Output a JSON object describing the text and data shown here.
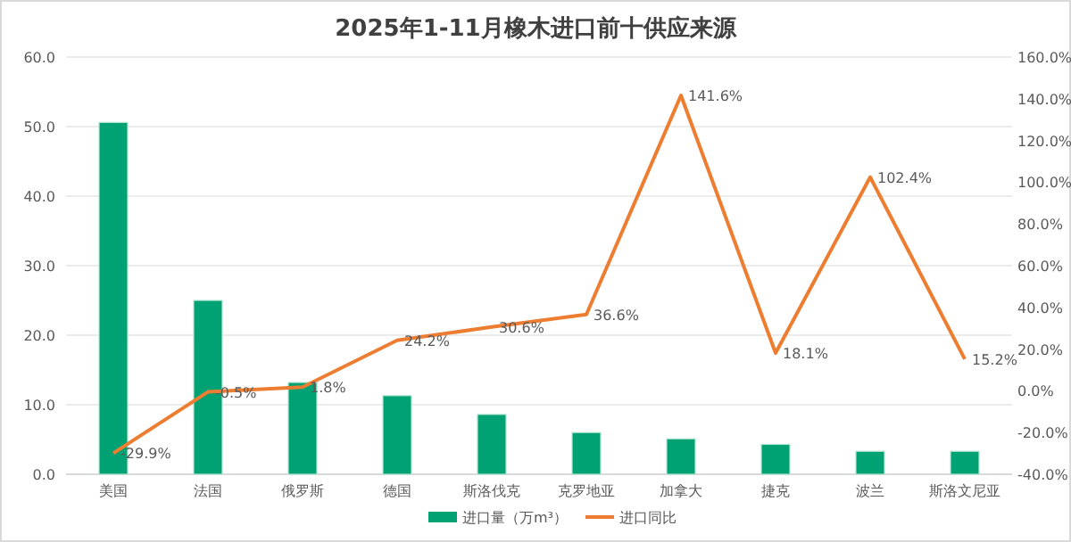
{
  "chart_data": {
    "type": "bar",
    "title": "2025年1-11月橡木进口前十供应来源",
    "categories": [
      "美国",
      "法国",
      "俄罗斯",
      "德国",
      "斯洛伐克",
      "克罗地亚",
      "加拿大",
      "捷克",
      "波兰",
      "斯洛文尼亚"
    ],
    "series": [
      {
        "name": "进口量（万m³）",
        "color": "#00a274",
        "values": [
          50.6,
          25.0,
          13.2,
          11.3,
          8.6,
          6.0,
          5.1,
          4.3,
          3.3,
          3.3
        ]
      },
      {
        "name": "进口同比",
        "type": "line",
        "axis": "y2",
        "color": "#ed7d31",
        "values": [
          -29.9,
          -0.5,
          1.8,
          24.2,
          30.6,
          36.6,
          141.6,
          18.1,
          102.4,
          15.2
        ],
        "value_labels": [
          "-29.9%",
          "-0.5%",
          "1.8%",
          "24.2%",
          "30.6%",
          "36.6%",
          "141.6%",
          "18.1%",
          "102.4%",
          "15.2%"
        ]
      }
    ],
    "ylim": [
      0,
      60
    ],
    "yticks": [
      {
        "value": 0,
        "label": "0.0"
      },
      {
        "value": 10,
        "label": "10.0"
      },
      {
        "value": 20,
        "label": "20.0"
      },
      {
        "value": 30,
        "label": "30.0"
      },
      {
        "value": 40,
        "label": "40.0"
      },
      {
        "value": 50,
        "label": "50.0"
      },
      {
        "value": 60,
        "label": "60.0"
      }
    ],
    "y2lim": [
      -40,
      160
    ],
    "y2ticks": [
      {
        "value": -40,
        "label": "-40.0%"
      },
      {
        "value": -20,
        "label": "-20.0%"
      },
      {
        "value": 0,
        "label": "0.0%"
      },
      {
        "value": 20,
        "label": "20.0%"
      },
      {
        "value": 40,
        "label": "40.0%"
      },
      {
        "value": 60,
        "label": "60.0%"
      },
      {
        "value": 80,
        "label": "80.0%"
      },
      {
        "value": 100,
        "label": "100.0%"
      },
      {
        "value": 120,
        "label": "120.0%"
      },
      {
        "value": 140,
        "label": "140.0%"
      },
      {
        "value": 160,
        "label": "160.0%"
      }
    ],
    "grid": "y",
    "legend": "bottom"
  }
}
